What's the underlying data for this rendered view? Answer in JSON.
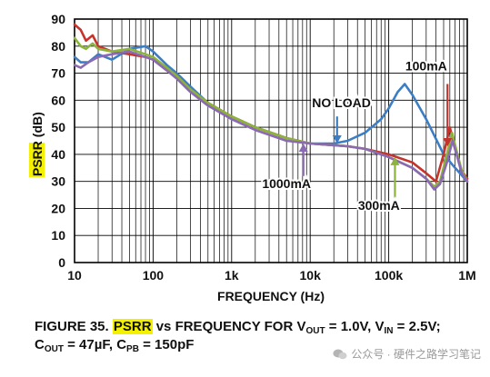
{
  "chart_data": {
    "type": "line",
    "xscale": "log",
    "xlim": [
      10,
      1000000
    ],
    "ylim": [
      0,
      90
    ],
    "xlabel": "FREQUENCY (Hz)",
    "ylabel_prefix": "PSRR",
    "ylabel_suffix": " (dB)",
    "grid": true,
    "x_ticks": [
      {
        "label": "10",
        "value": 10
      },
      {
        "label": "100",
        "value": 100
      },
      {
        "label": "1k",
        "value": 1000
      },
      {
        "label": "10k",
        "value": 10000
      },
      {
        "label": "100k",
        "value": 100000
      },
      {
        "label": "1M",
        "value": 1000000
      }
    ],
    "y_ticks": [
      0,
      10,
      20,
      30,
      40,
      50,
      60,
      70,
      80,
      90
    ],
    "series": [
      {
        "name": "NO LOAD",
        "color": "#3c7dc4",
        "points": [
          [
            10,
            76
          ],
          [
            12,
            74
          ],
          [
            15,
            74
          ],
          [
            20,
            77
          ],
          [
            30,
            75
          ],
          [
            50,
            79
          ],
          [
            80,
            80
          ],
          [
            100,
            78
          ],
          [
            150,
            73
          ],
          [
            200,
            70
          ],
          [
            300,
            65
          ],
          [
            500,
            59
          ],
          [
            1000,
            54
          ],
          [
            2000,
            50
          ],
          [
            5000,
            46
          ],
          [
            10000,
            44
          ],
          [
            20000,
            44
          ],
          [
            30000,
            45
          ],
          [
            50000,
            48
          ],
          [
            80000,
            53
          ],
          [
            100000,
            57
          ],
          [
            130000,
            63
          ],
          [
            160000,
            66
          ],
          [
            200000,
            62
          ],
          [
            300000,
            53
          ],
          [
            500000,
            40
          ],
          [
            700000,
            35
          ],
          [
            1000000,
            30
          ]
        ]
      },
      {
        "name": "100mA",
        "color": "#c4342c",
        "points": [
          [
            10,
            88
          ],
          [
            12,
            86
          ],
          [
            14,
            82
          ],
          [
            17,
            84
          ],
          [
            20,
            80
          ],
          [
            30,
            78
          ],
          [
            50,
            77
          ],
          [
            80,
            76
          ],
          [
            100,
            75
          ],
          [
            150,
            71
          ],
          [
            200,
            69
          ],
          [
            300,
            64
          ],
          [
            500,
            59
          ],
          [
            1000,
            54
          ],
          [
            2000,
            50
          ],
          [
            5000,
            46
          ],
          [
            10000,
            44
          ],
          [
            30000,
            43
          ],
          [
            50000,
            42
          ],
          [
            100000,
            40
          ],
          [
            200000,
            37
          ],
          [
            300000,
            33
          ],
          [
            400000,
            30
          ],
          [
            500000,
            40
          ],
          [
            600000,
            50
          ],
          [
            700000,
            42
          ],
          [
            850000,
            34
          ],
          [
            1000000,
            31
          ]
        ]
      },
      {
        "name": "300mA",
        "color": "#8db43a",
        "points": [
          [
            10,
            83
          ],
          [
            12,
            80
          ],
          [
            14,
            79
          ],
          [
            17,
            81
          ],
          [
            20,
            79
          ],
          [
            30,
            78
          ],
          [
            50,
            79
          ],
          [
            80,
            77
          ],
          [
            100,
            76
          ],
          [
            150,
            72
          ],
          [
            200,
            69
          ],
          [
            300,
            64
          ],
          [
            500,
            59
          ],
          [
            1000,
            54
          ],
          [
            2000,
            50
          ],
          [
            5000,
            46
          ],
          [
            10000,
            44
          ],
          [
            30000,
            43
          ],
          [
            50000,
            42
          ],
          [
            100000,
            39
          ],
          [
            200000,
            35
          ],
          [
            300000,
            31
          ],
          [
            380000,
            28
          ],
          [
            450000,
            30
          ],
          [
            550000,
            40
          ],
          [
            640000,
            48
          ],
          [
            720000,
            42
          ],
          [
            850000,
            34
          ],
          [
            1000000,
            30
          ]
        ]
      },
      {
        "name": "1000mA",
        "color": "#8a6ab3",
        "points": [
          [
            10,
            73
          ],
          [
            12,
            72
          ],
          [
            15,
            74
          ],
          [
            20,
            76
          ],
          [
            30,
            77
          ],
          [
            50,
            78
          ],
          [
            80,
            76
          ],
          [
            100,
            75
          ],
          [
            150,
            71
          ],
          [
            200,
            68
          ],
          [
            300,
            63
          ],
          [
            500,
            58
          ],
          [
            1000,
            53
          ],
          [
            2000,
            49
          ],
          [
            5000,
            45
          ],
          [
            10000,
            44
          ],
          [
            30000,
            43
          ],
          [
            50000,
            42
          ],
          [
            100000,
            39
          ],
          [
            200000,
            35
          ],
          [
            300000,
            31
          ],
          [
            380000,
            27
          ],
          [
            450000,
            29
          ],
          [
            550000,
            37
          ],
          [
            650000,
            45
          ],
          [
            730000,
            40
          ],
          [
            850000,
            33
          ],
          [
            1000000,
            30
          ]
        ]
      }
    ],
    "annotations": [
      {
        "text": "100mA",
        "series": "100mA"
      },
      {
        "text": "NO LOAD",
        "series": "NO LOAD"
      },
      {
        "text": "1000mA",
        "series": "1000mA"
      },
      {
        "text": "300mA",
        "series": "300mA"
      }
    ]
  },
  "caption": {
    "prefix": "FIGURE 35. ",
    "highlight": "PSRR",
    "line1_text": " vs FREQUENCY FOR V",
    "sub_out": "OUT",
    "eq1": " = 1.0V, V",
    "sub_in": "IN",
    "eq2": " = 2.5V;",
    "line2_c": "C",
    "sub_out2": "OUT",
    "eq3": " = 47µF, C",
    "sub_pb": "PB",
    "eq4": " = 150pF"
  },
  "watermark": {
    "text": "公众号 · 硬件之路学习笔记",
    "color": "#9a9a9a"
  }
}
